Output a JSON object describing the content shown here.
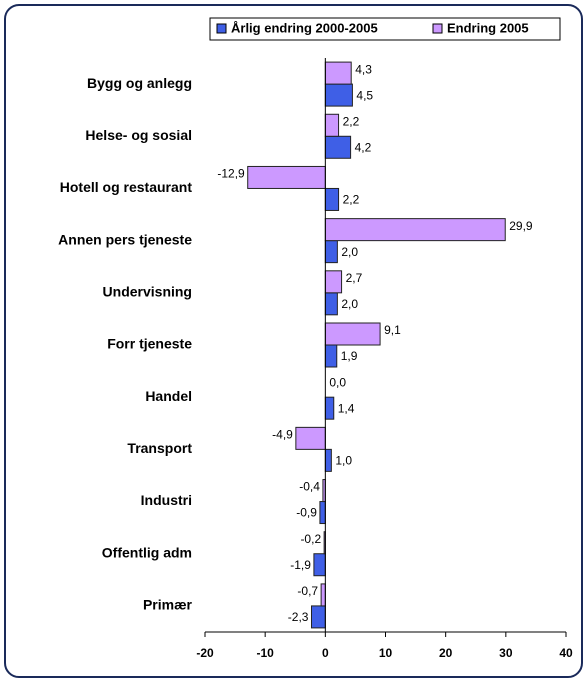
{
  "chart_data": {
    "type": "hbar",
    "categories": [
      "Bygg og anlegg",
      "Helse- og sosial",
      "Hotell og restaurant",
      "Annen pers tjeneste",
      "Undervisning",
      "Forr tjeneste",
      "Handel",
      "Transport",
      "Industri",
      "Offentlig adm",
      "Primær"
    ],
    "series": [
      {
        "name": "Årlig endring 2000-2005",
        "color": "#3f5fe6",
        "values": [
          4.5,
          4.2,
          2.2,
          2.0,
          2.0,
          1.9,
          1.4,
          1.0,
          -0.9,
          -1.9,
          -2.3
        ],
        "value_labels": [
          "4,5",
          "4,2",
          "2,2",
          "2,0",
          "2,0",
          "1,9",
          "1,4",
          "1,0",
          "-0,9",
          "-1,9",
          "-2,3"
        ]
      },
      {
        "name": "Endring 2005",
        "color": "#cc99ff",
        "values": [
          4.3,
          2.2,
          -12.9,
          29.9,
          2.7,
          9.1,
          0.0,
          -4.9,
          -0.4,
          -0.2,
          -0.7
        ],
        "value_labels": [
          "4,3",
          "2,2",
          "-12,9",
          "29,9",
          "2,7",
          "9,1",
          "0,0",
          "-4,9",
          "-0,4",
          "-0,2",
          "-0,7"
        ]
      }
    ],
    "xlim": [
      -20,
      40
    ],
    "xticks": [
      -20,
      -10,
      0,
      10,
      20,
      30,
      40
    ],
    "legend": "top"
  }
}
